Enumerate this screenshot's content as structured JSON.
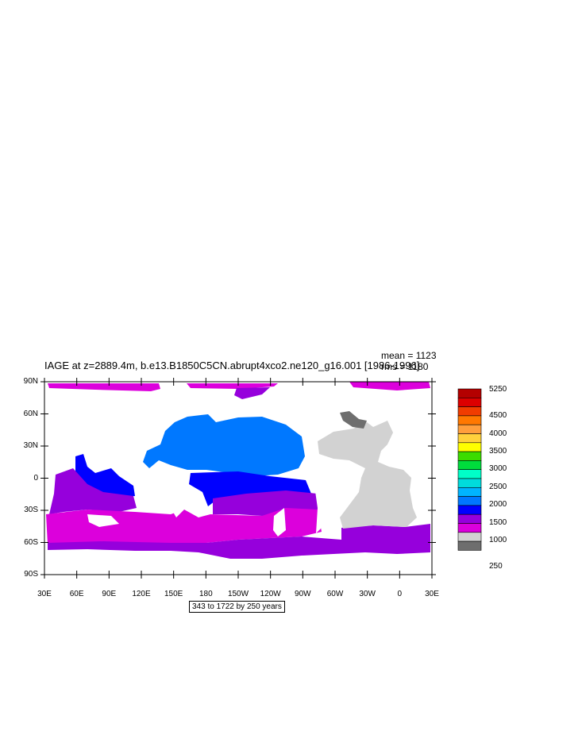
{
  "title": "IAGE at z=2889.4m, b.e13.B1850C5CN.abrupt4xco2.ne120_g16.001 [1986-1996]",
  "stats": {
    "mean": "mean = 1123",
    "rms": "rms = 1180"
  },
  "range_label": "343 to 1722 by 250 years",
  "lat_ticks": [
    "90N",
    "60N",
    "30N",
    "0",
    "30S",
    "60S",
    "90S"
  ],
  "lon_ticks": [
    "30E",
    "60E",
    "90E",
    "120E",
    "150E",
    "180",
    "150W",
    "120W",
    "90W",
    "60W",
    "30W",
    "0",
    "30E"
  ],
  "colorbar": {
    "labels": [
      "5250",
      "4500",
      "4000",
      "3500",
      "3000",
      "2500",
      "2000",
      "1500",
      "1000",
      "250"
    ],
    "colors": [
      "#b40000",
      "#dc0000",
      "#f03c00",
      "#ff7800",
      "#ff9f3c",
      "#ffd23c",
      "#ffff00",
      "#3cdc00",
      "#00dc3c",
      "#00ffc8",
      "#00dcdc",
      "#00b4ff",
      "#0078ff",
      "#0000ff",
      "#9600dc",
      "#dc00dc",
      "#d2d2d2",
      "#6e6e6e"
    ]
  },
  "map_colors": {
    "land": "#ffffff",
    "atlantic": "#d2d2d2",
    "north_pacific": "#0078ff",
    "equatorial_pacific": "#0000ff",
    "south_pacific": "#9600dc",
    "southern_ocean": "#dc00dc",
    "arctic": "#dc00dc",
    "gin_seas": "#6e6e6e"
  }
}
